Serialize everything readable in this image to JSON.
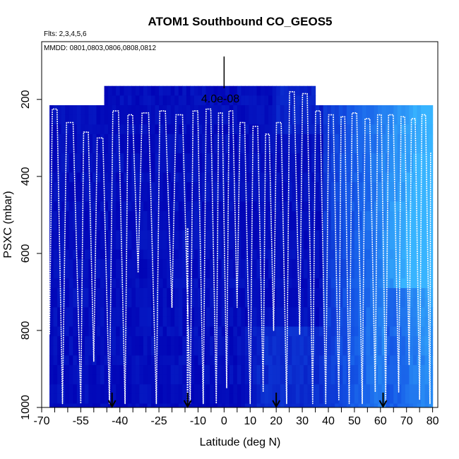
{
  "chart_data": {
    "type": "heatmap",
    "title": "ATOM1 Southbound CO_GEOS5",
    "flights_label": "Flts: 2,3,4,5,6",
    "dates_label": "MMDD: 0801,0803,0806,0808,0812",
    "xlabel": "Latitude (deg N)",
    "ylabel": "PSXC (mbar)",
    "xlim": [
      -70,
      82
    ],
    "ylim": [
      1000,
      50
    ],
    "x_ticks": [
      -70,
      -55,
      -40,
      -25,
      -10,
      0,
      10,
      20,
      30,
      40,
      50,
      60,
      70,
      80
    ],
    "x_tick_labels": [
      "-70",
      "-55",
      "-40",
      "-25",
      "-10",
      "0",
      "10",
      "20",
      "30",
      "40",
      "50",
      "60",
      "70",
      "80"
    ],
    "x_minor_ticks": [
      -65,
      -60,
      -50,
      -45,
      -35,
      -30,
      -20,
      -15,
      -5,
      5,
      15,
      25,
      35,
      45,
      55,
      65,
      75
    ],
    "y_ticks": [
      200,
      400,
      600,
      800,
      1000
    ],
    "y_tick_labels": [
      "200",
      "400",
      "600",
      "800",
      "1000"
    ],
    "scale_label": "4.0e-08",
    "scale_bar_latitude": 0,
    "panels": [
      {
        "lat_start": -67,
        "lat_end": -46,
        "p_top": 215,
        "p_bottom": 1000
      },
      {
        "lat_start": -46,
        "lat_end": 35,
        "p_top": 165,
        "p_bottom": 1000
      },
      {
        "lat_start": 35,
        "lat_end": 80,
        "p_top": 215,
        "p_bottom": 1000
      }
    ],
    "color_scale": {
      "low": "#0000b4",
      "mid": "#1456e6",
      "high": "#38b4ff"
    },
    "profile_turning_latitudes": [
      -67,
      -62,
      -55,
      -50,
      -44,
      -38,
      -33,
      -26,
      -20,
      -13,
      -8,
      -3,
      1,
      5,
      10,
      15,
      19,
      24,
      29,
      34,
      39,
      44,
      48,
      53,
      58,
      62,
      67,
      71,
      75,
      79
    ],
    "profile_top_pressures": [
      225,
      260,
      285,
      300,
      230,
      240,
      235,
      230,
      240,
      230,
      225,
      235,
      230,
      260,
      270,
      290,
      260,
      180,
      185,
      230,
      240,
      245,
      235,
      250,
      240,
      240,
      245,
      250,
      240,
      340
    ],
    "profile_bottom_pressures": [
      810,
      990,
      990,
      880,
      990,
      990,
      650,
      990,
      740,
      990,
      990,
      990,
      950,
      740,
      990,
      960,
      800,
      990,
      810,
      990,
      990,
      980,
      990,
      990,
      960,
      990,
      960,
      890,
      980,
      990
    ],
    "highlight_profile_latitude": -14,
    "highlight_profile_pressures": [
      535,
      990
    ],
    "arrow_latitudes": [
      -43,
      -14,
      20,
      61
    ]
  }
}
